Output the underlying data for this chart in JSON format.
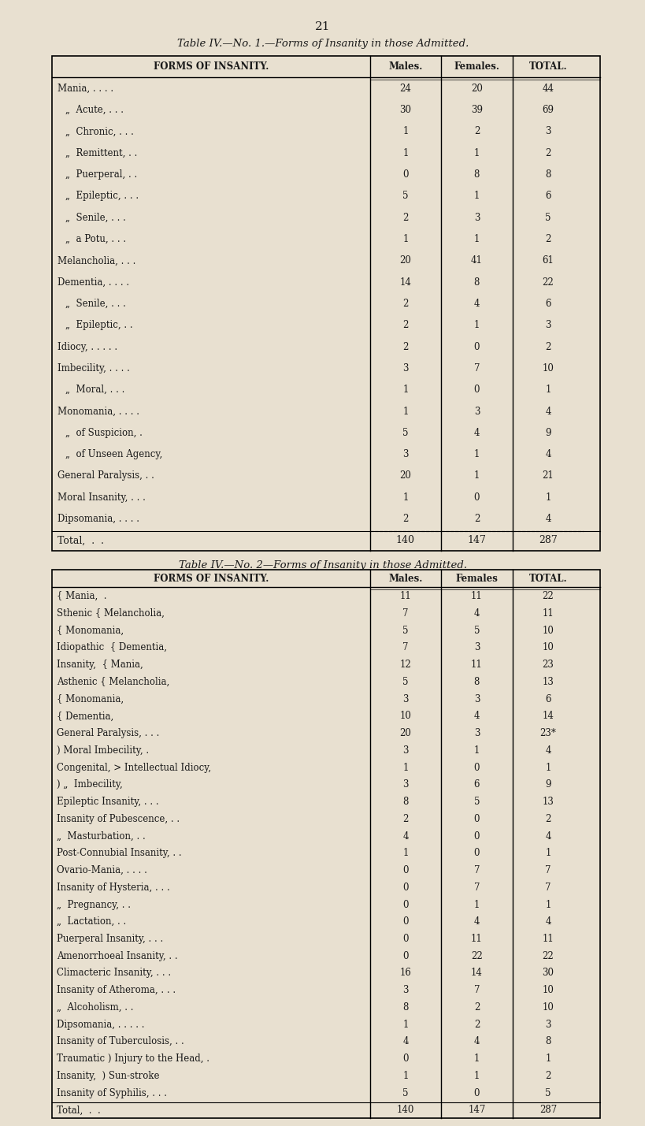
{
  "page_number": "21",
  "bg_color": "#e8e0d0",
  "table1": {
    "title": "Table IV.—No. 1.—Forms of Insanity in those Admitted.",
    "header": [
      "FORMS OF INSANITY.",
      "Males.",
      "Females.",
      "TOTAL."
    ],
    "rows": [
      [
        "Mania, . . . .",
        "24",
        "20",
        "44"
      ],
      [
        "„  Acute, . . .",
        "30",
        "39",
        "69"
      ],
      [
        "„  Chronic, . . .",
        "1",
        "2",
        "3"
      ],
      [
        "„  Remittent, . .",
        "1",
        "1",
        "2"
      ],
      [
        "„  Puerperal, . .",
        "0",
        "8",
        "8"
      ],
      [
        "„  Epileptic, . . .",
        "5",
        "1",
        "6"
      ],
      [
        "„  Senile, . . .",
        "2",
        "3",
        "5"
      ],
      [
        "„  a Potu, . . .",
        "1",
        "1",
        "2"
      ],
      [
        "Melancholia, . . .",
        "20",
        "41",
        "61"
      ],
      [
        "Dementia, . . . .",
        "14",
        "8",
        "22"
      ],
      [
        "„  Senile, . . .",
        "2",
        "4",
        "6"
      ],
      [
        "„  Epileptic, . .",
        "2",
        "1",
        "3"
      ],
      [
        "Idiocy, . . . . .",
        "2",
        "0",
        "2"
      ],
      [
        "Imbecility, . . . .",
        "3",
        "7",
        "10"
      ],
      [
        "„  Moral, . . .",
        "1",
        "0",
        "1"
      ],
      [
        "Monomania, . . . .",
        "1",
        "3",
        "4"
      ],
      [
        "„  of Suspicion, .",
        "5",
        "4",
        "9"
      ],
      [
        "„  of Unseen Agency,",
        "3",
        "1",
        "4"
      ],
      [
        "General Paralysis, . .",
        "20",
        "1",
        "21"
      ],
      [
        "Moral Insanity, . . .",
        "1",
        "0",
        "1"
      ],
      [
        "Dipsomania, . . . .",
        "2",
        "2",
        "4"
      ],
      [
        "Total,  .  .",
        "140",
        "147",
        "287"
      ]
    ]
  },
  "table2": {
    "title": "Table IV.—No. 2—Forms of Insanity in those Admitted.",
    "header": [
      "FORMS OF INSANITY.",
      "Males.",
      "Females",
      "TOTAL."
    ],
    "rows": [
      [
        "{ Mania,  .",
        "11",
        "11",
        "22"
      ],
      [
        "Sthenic { Melancholia,",
        "7",
        "4",
        "11"
      ],
      [
        "{ Monomania,",
        "5",
        "5",
        "10"
      ],
      [
        "Idiopathic  { Dementia,",
        "7",
        "3",
        "10"
      ],
      [
        "Insanity,  { Mania,",
        "12",
        "11",
        "23"
      ],
      [
        "Asthenic { Melancholia,",
        "5",
        "8",
        "13"
      ],
      [
        "{ Monomania,",
        "3",
        "3",
        "6"
      ],
      [
        "{ Dementia,",
        "10",
        "4",
        "14"
      ],
      [
        "General Paralysis, . . .",
        "20",
        "3",
        "23*"
      ],
      [
        ") Moral Imbecility, .",
        "3",
        "1",
        "4"
      ],
      [
        "Congenital, > Intellectual Idiocy,",
        "1",
        "0",
        "1"
      ],
      [
        ") „  Imbecility,",
        "3",
        "6",
        "9"
      ],
      [
        "Epileptic Insanity, . . .",
        "8",
        "5",
        "13"
      ],
      [
        "Insanity of Pubescence, . .",
        "2",
        "0",
        "2"
      ],
      [
        "„  Masturbation, . .",
        "4",
        "0",
        "4"
      ],
      [
        "Post-Connubial Insanity, . .",
        "1",
        "0",
        "1"
      ],
      [
        "Ovario-Mania, . . . .",
        "0",
        "7",
        "7"
      ],
      [
        "Insanity of Hysteria, . . .",
        "0",
        "7",
        "7"
      ],
      [
        "„  Pregnancy, . .",
        "0",
        "1",
        "1"
      ],
      [
        "„  Lactation, . .",
        "0",
        "4",
        "4"
      ],
      [
        "Puerperal Insanity, . . .",
        "0",
        "11",
        "11"
      ],
      [
        "Amenorrhoeal Insanity, . .",
        "0",
        "22",
        "22"
      ],
      [
        "Climacteric Insanity, . . .",
        "16",
        "14",
        "30"
      ],
      [
        "Insanity of Atheroma, . . .",
        "3",
        "7",
        "10"
      ],
      [
        "„  Alcoholism, . .",
        "8",
        "2",
        "10"
      ],
      [
        "Dipsomania, . . . . .",
        "1",
        "2",
        "3"
      ],
      [
        "Insanity of Tuberculosis, . .",
        "4",
        "4",
        "8"
      ],
      [
        "Traumatic ) Injury to the Head, .",
        "0",
        "1",
        "1"
      ],
      [
        "Insanity,  ) Sun-stroke",
        "1",
        "1",
        "2"
      ],
      [
        "Insanity of Syphilis, . . .",
        "5",
        "0",
        "5"
      ],
      [
        "Total,  .  .",
        "140",
        "147",
        "287"
      ]
    ]
  }
}
